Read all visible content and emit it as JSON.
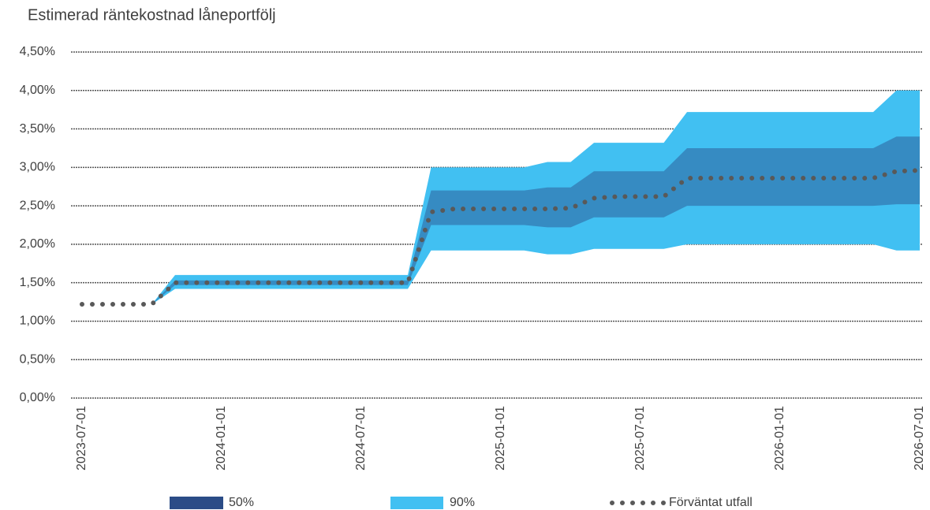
{
  "chart_data": {
    "type": "fan",
    "title": "Estimerad räntekostnad låneportfölj",
    "categories": [
      "2023-07-01",
      null,
      null,
      null,
      null,
      null,
      "2024-01-01",
      null,
      null,
      null,
      null,
      null,
      "2024-07-01",
      null,
      null,
      null,
      null,
      null,
      "2025-01-01",
      null,
      null,
      null,
      null,
      null,
      "2025-07-01",
      null,
      null,
      null,
      null,
      null,
      "2026-01-01",
      null,
      null,
      null,
      null,
      null,
      "2026-07-01"
    ],
    "ylim": [
      0,
      4.5
    ],
    "yticks": [
      {
        "value": 0,
        "label": "0,00%"
      },
      {
        "value": 0.5,
        "label": "0,50%"
      },
      {
        "value": 1,
        "label": "1,00%"
      },
      {
        "value": 1.5,
        "label": "1,50%"
      },
      {
        "value": 2,
        "label": "2,00%"
      },
      {
        "value": 2.5,
        "label": "2,50%"
      },
      {
        "value": 3,
        "label": "3,00%"
      },
      {
        "value": 3.5,
        "label": "3,50%"
      },
      {
        "value": 4,
        "label": "4,00%"
      },
      {
        "value": 4.5,
        "label": "4,50%"
      }
    ],
    "grid": true,
    "series": [
      {
        "name": "50%",
        "color": "#2b4c87",
        "low": [
          null,
          null,
          null,
          1.22,
          1.47,
          1.47,
          1.47,
          1.47,
          1.47,
          1.47,
          1.47,
          1.47,
          1.47,
          1.47,
          1.47,
          2.25,
          2.25,
          2.25,
          2.25,
          2.25,
          2.22,
          2.22,
          2.35,
          2.35,
          2.35,
          2.35,
          2.5,
          2.5,
          2.5,
          2.5,
          2.5,
          2.5,
          2.5,
          2.5,
          2.5,
          2.52,
          2.52
        ],
        "high": [
          null,
          null,
          null,
          1.22,
          1.53,
          1.53,
          1.53,
          1.53,
          1.53,
          1.53,
          1.53,
          1.53,
          1.53,
          1.53,
          1.53,
          2.7,
          2.7,
          2.7,
          2.7,
          2.7,
          2.74,
          2.74,
          2.95,
          2.95,
          2.95,
          2.95,
          3.25,
          3.25,
          3.25,
          3.25,
          3.25,
          3.25,
          3.25,
          3.25,
          3.25,
          3.4,
          3.4
        ]
      },
      {
        "name": "90%",
        "color": "#41c0f2",
        "low": [
          null,
          null,
          null,
          1.22,
          1.42,
          1.42,
          1.42,
          1.42,
          1.42,
          1.42,
          1.42,
          1.42,
          1.42,
          1.42,
          1.42,
          1.92,
          1.92,
          1.92,
          1.92,
          1.92,
          1.87,
          1.87,
          1.94,
          1.94,
          1.94,
          1.94,
          2.0,
          2.0,
          2.0,
          2.0,
          2.0,
          2.0,
          2.0,
          2.0,
          2.0,
          1.92,
          1.92
        ],
        "high": [
          null,
          null,
          null,
          1.22,
          1.6,
          1.6,
          1.6,
          1.6,
          1.6,
          1.6,
          1.6,
          1.6,
          1.6,
          1.6,
          1.6,
          3.0,
          3.0,
          3.0,
          3.0,
          3.0,
          3.07,
          3.07,
          3.32,
          3.32,
          3.32,
          3.32,
          3.72,
          3.72,
          3.72,
          3.72,
          3.72,
          3.72,
          3.72,
          3.72,
          3.72,
          4.0,
          4.0
        ]
      },
      {
        "name": "Förväntat utfall",
        "color": "#595959",
        "values": [
          1.22,
          1.22,
          1.22,
          1.22,
          1.5,
          1.5,
          1.5,
          1.5,
          1.5,
          1.5,
          1.5,
          1.5,
          1.5,
          1.5,
          1.5,
          2.42,
          2.46,
          2.46,
          2.46,
          2.46,
          2.46,
          2.47,
          2.6,
          2.62,
          2.62,
          2.62,
          2.86,
          2.86,
          2.86,
          2.86,
          2.86,
          2.86,
          2.86,
          2.86,
          2.86,
          2.95,
          2.96
        ]
      }
    ]
  }
}
